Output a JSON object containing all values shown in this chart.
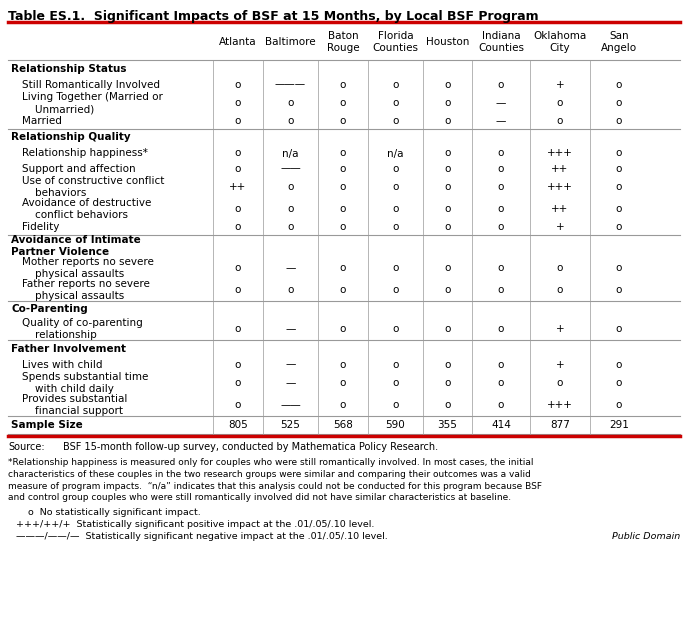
{
  "title": "Table ES.1.  Significant Impacts of BSF at 15 Months, by Local BSF Program",
  "columns": [
    "Atlanta",
    "Baltimore",
    "Baton\nRouge",
    "Florida\nCounties",
    "Houston",
    "Indiana\nCounties",
    "Oklahoma\nCity",
    "San\nAngelo"
  ],
  "rows": [
    {
      "label": "Relationship Status",
      "bold": true,
      "two_line": false,
      "values": [
        "",
        "",
        "",
        "",
        "",
        "",
        "",
        ""
      ]
    },
    {
      "label": "Still Romantically Involved",
      "bold": false,
      "two_line": false,
      "values": [
        "o",
        "———",
        "o",
        "o",
        "o",
        "o",
        "+",
        "o"
      ]
    },
    {
      "label": "Living Together (Married or\n    Unmarried)",
      "bold": false,
      "two_line": true,
      "values": [
        "o",
        "o",
        "o",
        "o",
        "o",
        "—",
        "o",
        "o"
      ]
    },
    {
      "label": "Married",
      "bold": false,
      "two_line": false,
      "values": [
        "o",
        "o",
        "o",
        "o",
        "o",
        "—",
        "o",
        "o"
      ]
    },
    {
      "label": "Relationship Quality",
      "bold": true,
      "two_line": false,
      "values": [
        "",
        "",
        "",
        "",
        "",
        "",
        "",
        ""
      ]
    },
    {
      "label": "Relationship happiness*",
      "bold": false,
      "two_line": false,
      "values": [
        "o",
        "n/a",
        "o",
        "n/a",
        "o",
        "o",
        "+++",
        "o"
      ]
    },
    {
      "label": "Support and affection",
      "bold": false,
      "two_line": false,
      "values": [
        "o",
        "——",
        "o",
        "o",
        "o",
        "o",
        "++",
        "o"
      ]
    },
    {
      "label": "Use of constructive conflict\n    behaviors",
      "bold": false,
      "two_line": true,
      "values": [
        "++",
        "o",
        "o",
        "o",
        "o",
        "o",
        "+++",
        "o"
      ]
    },
    {
      "label": "Avoidance of destructive\n    conflict behaviors",
      "bold": false,
      "two_line": true,
      "values": [
        "o",
        "o",
        "o",
        "o",
        "o",
        "o",
        "++",
        "o"
      ]
    },
    {
      "label": "Fidelity",
      "bold": false,
      "two_line": false,
      "values": [
        "o",
        "o",
        "o",
        "o",
        "o",
        "o",
        "+",
        "o"
      ]
    },
    {
      "label": "Avoidance of Intimate\nPartner Violence",
      "bold": true,
      "two_line": true,
      "values": [
        "",
        "",
        "",
        "",
        "",
        "",
        "",
        ""
      ]
    },
    {
      "label": "Mother reports no severe\n    physical assaults",
      "bold": false,
      "two_line": true,
      "values": [
        "o",
        "—",
        "o",
        "o",
        "o",
        "o",
        "o",
        "o"
      ]
    },
    {
      "label": "Father reports no severe\n    physical assaults",
      "bold": false,
      "two_line": true,
      "values": [
        "o",
        "o",
        "o",
        "o",
        "o",
        "o",
        "o",
        "o"
      ]
    },
    {
      "label": "Co-Parenting",
      "bold": true,
      "two_line": false,
      "values": [
        "",
        "",
        "",
        "",
        "",
        "",
        "",
        ""
      ]
    },
    {
      "label": "Quality of co-parenting\n    relationship",
      "bold": false,
      "two_line": true,
      "values": [
        "o",
        "—",
        "o",
        "o",
        "o",
        "o",
        "+",
        "o"
      ]
    },
    {
      "label": "Father Involvement",
      "bold": true,
      "two_line": false,
      "values": [
        "",
        "",
        "",
        "",
        "",
        "",
        "",
        ""
      ]
    },
    {
      "label": "Lives with child",
      "bold": false,
      "two_line": false,
      "values": [
        "o",
        "—",
        "o",
        "o",
        "o",
        "o",
        "+",
        "o"
      ]
    },
    {
      "label": "Spends substantial time\n    with child daily",
      "bold": false,
      "two_line": true,
      "values": [
        "o",
        "—",
        "o",
        "o",
        "o",
        "o",
        "o",
        "o"
      ]
    },
    {
      "label": "Provides substantial\n    financial support",
      "bold": false,
      "two_line": true,
      "values": [
        "o",
        "——",
        "o",
        "o",
        "o",
        "o",
        "+++",
        "o"
      ]
    },
    {
      "label": "Sample Size",
      "bold": true,
      "two_line": false,
      "values": [
        "805",
        "525",
        "568",
        "590",
        "355",
        "414",
        "877",
        "291"
      ]
    }
  ],
  "section_divider_rows": [
    4,
    10,
    13,
    15,
    19
  ],
  "top_border_color": "#cc0000",
  "divider_color": "#999999",
  "bg_color": "#ffffff",
  "text_color": "#000000"
}
